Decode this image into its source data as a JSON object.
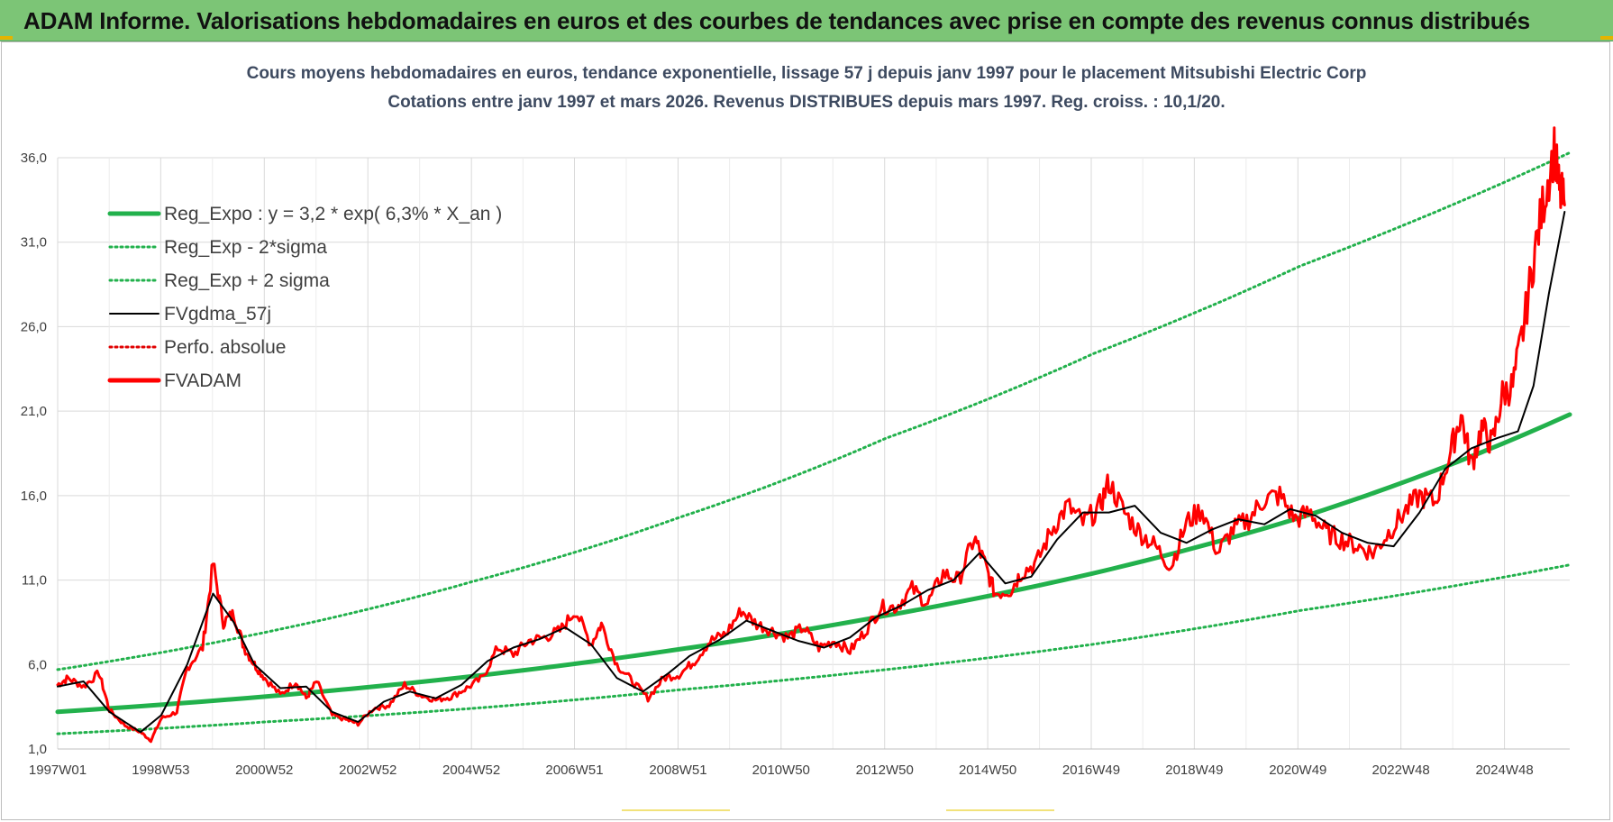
{
  "header": {
    "title": "ADAM Informe. Valorisations hebdomadaires en euros et des courbes de tendances avec prise en compte des revenus connus distribués"
  },
  "chart_data": {
    "type": "line",
    "title_line1": "Cours moyens hebdomadaires en euros, tendance exponentielle, lissage 57 j depuis janv 1997 pour le placement Mitsubishi Electric Corp",
    "title_line2": "Cotations entre janv 1997 et mars 2026. Revenus DISTRIBUES depuis mars 1997. Reg. croiss. : 10,1/20.",
    "xlabel": "",
    "ylabel": "",
    "ylim": [
      1.0,
      36.0
    ],
    "yticks": [
      "1,0",
      "6,0",
      "11,0",
      "16,0",
      "21,0",
      "26,0",
      "31,0",
      "36,0"
    ],
    "yticks_values": [
      1,
      6,
      11,
      16,
      21,
      26,
      31,
      36
    ],
    "xlim": [
      1997.0,
      2026.2
    ],
    "xticks": [
      "1997W01",
      "1998W53",
      "2000W52",
      "2002W52",
      "2004W52",
      "2006W51",
      "2008W51",
      "2010W50",
      "2012W50",
      "2014W50",
      "2016W49",
      "2018W49",
      "2020W49",
      "2022W48",
      "2024W48"
    ],
    "xticks_years": [
      1997.0,
      1998.99,
      2000.99,
      2002.99,
      2004.99,
      2006.98,
      2008.98,
      2010.97,
      2012.97,
      2014.96,
      2016.96,
      2018.95,
      2020.95,
      2022.94,
      2024.94
    ],
    "grid": true,
    "legend_position": "top-left",
    "series": [
      {
        "name": "Reg_Expo : y = 3,2 * exp( 6,3% *  X_an )",
        "color": "#22b14c",
        "style": "solid-thick",
        "x": [
          1997.0,
          2001.0,
          2005.0,
          2009.0,
          2013.0,
          2017.0,
          2021.0,
          2026.2
        ],
        "values": [
          3.2,
          4.1,
          5.3,
          6.9,
          8.9,
          11.4,
          14.7,
          20.8
        ]
      },
      {
        "name": "Reg_Exp - 2*sigma",
        "color": "#22b14c",
        "style": "dotted",
        "x": [
          1997.0,
          2001.0,
          2005.0,
          2009.0,
          2013.0,
          2017.0,
          2021.0,
          2026.2
        ],
        "values": [
          1.9,
          2.6,
          3.4,
          4.5,
          5.7,
          7.2,
          9.2,
          11.9
        ]
      },
      {
        "name": "Reg_Exp + 2 sigma",
        "color": "#22b14c",
        "style": "dotted",
        "x": [
          1997.0,
          2001.0,
          2005.0,
          2009.0,
          2013.0,
          2017.0,
          2021.0,
          2026.2
        ],
        "values": [
          5.7,
          7.9,
          10.9,
          14.7,
          19.4,
          24.4,
          29.6,
          36.3
        ]
      },
      {
        "name": "FVgdma_57j",
        "color": "#000000",
        "style": "solid",
        "x": [
          1997.0,
          1997.5,
          1998.0,
          1998.6,
          1999.0,
          1999.5,
          2000.0,
          2000.4,
          2000.8,
          2001.3,
          2001.8,
          2002.3,
          2002.8,
          2003.3,
          2003.8,
          2004.3,
          2004.8,
          2005.3,
          2005.8,
          2006.3,
          2006.8,
          2007.3,
          2007.8,
          2008.3,
          2008.8,
          2009.2,
          2009.8,
          2010.3,
          2010.8,
          2011.3,
          2011.8,
          2012.3,
          2012.8,
          2013.3,
          2013.8,
          2014.3,
          2014.8,
          2015.3,
          2015.8,
          2016.3,
          2016.8,
          2017.3,
          2017.8,
          2018.3,
          2018.8,
          2019.3,
          2019.8,
          2020.3,
          2020.8,
          2021.3,
          2021.8,
          2022.3,
          2022.8,
          2023.3,
          2023.8,
          2024.3,
          2024.8,
          2025.2,
          2025.5,
          2025.8,
          2026.1
        ],
        "values": [
          4.7,
          5.0,
          3.2,
          2.0,
          3.0,
          6.0,
          10.2,
          8.5,
          6.0,
          4.6,
          4.7,
          3.2,
          2.6,
          3.8,
          4.4,
          4.0,
          4.8,
          6.2,
          7.0,
          7.5,
          8.2,
          7.2,
          5.2,
          4.4,
          5.5,
          6.5,
          7.5,
          8.6,
          8.0,
          7.4,
          7.0,
          7.6,
          8.8,
          9.5,
          10.4,
          11.0,
          12.6,
          10.8,
          11.2,
          13.4,
          15.0,
          15.0,
          15.4,
          13.8,
          13.2,
          14.0,
          14.6,
          14.3,
          15.2,
          14.8,
          13.8,
          13.2,
          13.0,
          15.0,
          17.6,
          18.8,
          19.4,
          19.8,
          22.5,
          28.0,
          32.8
        ]
      },
      {
        "name": "Perfo. absolue",
        "color": "#e00000",
        "style": "dotted",
        "x": [],
        "values": []
      },
      {
        "name": "FVADAM",
        "color": "#ff0000",
        "style": "solid-thick",
        "x": [
          1997.0,
          1997.2,
          1997.5,
          1997.8,
          1998.0,
          1998.3,
          1998.6,
          1998.8,
          1999.0,
          1999.3,
          1999.5,
          1999.8,
          2000.0,
          2000.2,
          2000.4,
          2000.6,
          2000.8,
          2001.0,
          2001.3,
          2001.6,
          2001.8,
          2002.0,
          2002.3,
          2002.6,
          2002.8,
          2003.1,
          2003.4,
          2003.7,
          2004.0,
          2004.3,
          2004.6,
          2004.9,
          2005.2,
          2005.5,
          2005.8,
          2006.1,
          2006.4,
          2006.7,
          2007.0,
          2007.3,
          2007.5,
          2007.8,
          2008.1,
          2008.4,
          2008.7,
          2009.0,
          2009.3,
          2009.6,
          2009.9,
          2010.2,
          2010.5,
          2010.8,
          2011.1,
          2011.4,
          2011.7,
          2012.0,
          2012.3,
          2012.6,
          2012.9,
          2013.2,
          2013.5,
          2013.8,
          2014.1,
          2014.4,
          2014.7,
          2014.9,
          2015.1,
          2015.4,
          2015.6,
          2015.9,
          2016.2,
          2016.5,
          2016.8,
          2017.1,
          2017.3,
          2017.6,
          2017.9,
          2018.2,
          2018.5,
          2018.8,
          2019.1,
          2019.4,
          2019.7,
          2020.0,
          2020.3,
          2020.6,
          2020.9,
          2021.2,
          2021.5,
          2021.8,
          2022.1,
          2022.4,
          2022.7,
          2023.0,
          2023.3,
          2023.6,
          2023.9,
          2024.1,
          2024.3,
          2024.5,
          2024.7,
          2024.9,
          2025.1,
          2025.3,
          2025.5,
          2025.7,
          2025.9,
          2026.0,
          2026.1
        ],
        "values": [
          4.8,
          5.2,
          4.7,
          5.5,
          3.3,
          2.4,
          2.0,
          1.5,
          2.8,
          3.2,
          5.8,
          7.0,
          12.0,
          8.5,
          9.0,
          7.0,
          6.0,
          5.2,
          4.2,
          5.0,
          4.0,
          5.0,
          3.0,
          2.7,
          2.5,
          3.4,
          3.6,
          4.8,
          4.2,
          3.9,
          4.1,
          4.6,
          5.2,
          7.0,
          6.6,
          7.4,
          7.6,
          8.0,
          9.2,
          7.2,
          8.4,
          6.0,
          5.0,
          4.0,
          5.2,
          5.4,
          6.2,
          7.4,
          7.8,
          9.2,
          8.4,
          8.0,
          7.6,
          8.2,
          7.0,
          7.4,
          6.8,
          8.0,
          9.4,
          9.4,
          10.5,
          9.6,
          11.4,
          11.0,
          13.5,
          12.0,
          10.2,
          10.4,
          11.4,
          12.0,
          14.0,
          15.4,
          14.4,
          15.2,
          16.8,
          15.0,
          13.8,
          13.0,
          11.8,
          14.4,
          15.2,
          12.6,
          14.0,
          14.6,
          15.8,
          16.0,
          14.6,
          15.0,
          13.8,
          13.4,
          13.0,
          12.6,
          13.8,
          15.0,
          16.0,
          15.6,
          18.6,
          20.8,
          17.8,
          20.0,
          19.0,
          22.0,
          22.5,
          25.8,
          30.0,
          33.5,
          36.5,
          34.0,
          33.2
        ]
      }
    ]
  }
}
